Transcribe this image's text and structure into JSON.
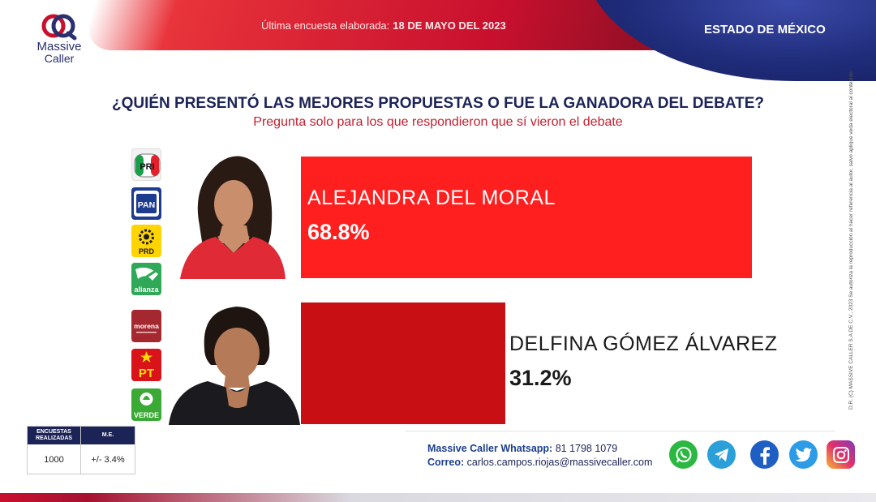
{
  "header": {
    "date_label": "Última encuesta elaborada:",
    "date_value": "18 DE MAYO DEL 2023",
    "region": "ESTADO DE MÉXICO"
  },
  "brand": {
    "name": "Massive",
    "name_sub": "Caller"
  },
  "question": {
    "title": "¿QUIÉN PRESENTÓ LAS MEJORES PROPUESTAS O FUE LA GANADORA DEL DEBATE?",
    "subtitle": "Pregunta solo para los que respondieron que sí vieron el debate"
  },
  "chart_data": {
    "type": "bar",
    "orientation": "horizontal",
    "categories": [
      "ALEJANDRA DEL MORAL",
      "DELFINA GÓMEZ ÁLVAREZ"
    ],
    "values": [
      68.8,
      31.2
    ],
    "value_labels": [
      "68.8%",
      "31.2%"
    ],
    "colors": [
      "#ff1f1f",
      "#c80f14"
    ],
    "xlim": [
      0,
      100
    ],
    "grid": false,
    "legend": "none"
  },
  "parties": {
    "group1": [
      "PRI",
      "PAN",
      "PRD",
      "alianza"
    ],
    "group2": [
      "morena",
      "PT",
      "VERDE"
    ]
  },
  "sample": {
    "col1_header": "ENCUESTAS REALIZADAS",
    "col2_header": "M.E.",
    "col1_value": "1000",
    "col2_value": "+/- 3.4%"
  },
  "contact": {
    "whatsapp_label": "Massive Caller Whatsapp:",
    "whatsapp_value": "81 1798 1079",
    "email_label": "Correo:",
    "email_value": "carlos.campos.riojas@massivecaller.com"
  },
  "social_icons": [
    "whatsapp-icon",
    "telegram-icon",
    "facebook-icon",
    "twitter-icon",
    "instagram-icon"
  ],
  "credit": "D.R. (C) MASSIVE CALLER S.A DE C.V., 2023 Se autoriza la reproducción al hacer referencia al autor, salvo aplique veda electoral al contenido.",
  "colors": {
    "navy": "#1c2357",
    "accent_red": "#c4202f",
    "bar_1": "#ff1f1f",
    "bar_2": "#c80f14"
  }
}
